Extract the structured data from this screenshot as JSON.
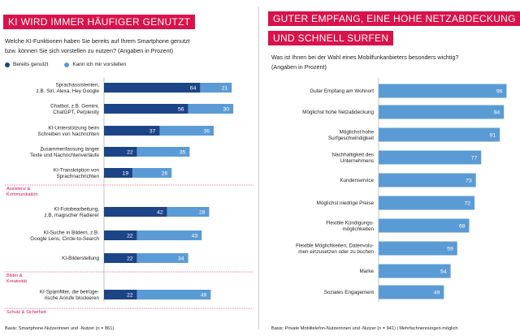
{
  "left": {
    "title": "KI WIRD IMMER HÄUFIGER GENUTZT",
    "question_line1": "Welche KI-Funktionen haben Sie bereits auf Ihrem Smartphone genutzt",
    "question_line2": "bzw. können Sie sich vorstellen zu nutzen? (Angaben in Prozent)",
    "basis": "Basis: Smartphone-Nutzerinnen und -Nutzer (n = 861)"
  },
  "right": {
    "title_line1": "GUTER EMPFANG, EINE HOHE NETZABDECKUNG",
    "title_line2": "UND SCHNELL SURFEN",
    "question_line1": "Was ist Ihnen bei der Wahl eines Mobilfunkanbieters besonders wichtig?",
    "question_line2": "(Angaben in Prozent)",
    "basis": "Basis: Private Mobiltelefon-Nutzerinnen und -Nutzer (n = 941) | Mehrfachnennungen möglich"
  },
  "colors": {
    "accent": "#d9124c",
    "dark_blue": "#1c4587",
    "light_blue": "#5b9bd5",
    "text": "#1d1d1b"
  },
  "chart_data": [
    {
      "type": "bar",
      "orientation": "horizontal",
      "stacked": true,
      "legend": [
        "Bereits genutzt",
        "Kann ich mir vorstellen"
      ],
      "categories": [
        [
          "Sprachassistenten,",
          "z.B. Siri, Alexa, Hey Google"
        ],
        [
          "Chatbot, z.B. Gemini,",
          "ChatGPT, Perplexity"
        ],
        [
          "KI-Unterstützung beim",
          "Schreiben von Nachrichten"
        ],
        [
          "Zusammenfassung langer",
          "Texte und Nachrichtenverläufe"
        ],
        [
          "KI-Transkription von",
          "Sprachnachrichten"
        ],
        [
          "KI-Fotobearbeitung,",
          "z.B. magischer Radierer"
        ],
        [
          "KI-Suche in Bildern, z.B.",
          "Google Lens, Circle-to-Search"
        ],
        [
          "KI-Bilderstellung"
        ],
        [
          "KI-Spamfilter, die betrüge-",
          "rische Anrufe blockieren"
        ]
      ],
      "series": [
        {
          "name": "Bereits genutzt",
          "values": [
            64,
            56,
            37,
            22,
            19,
            42,
            22,
            22,
            22
          ]
        },
        {
          "name": "Kann ich mir vorstellen",
          "values": [
            21,
            30,
            36,
            35,
            26,
            28,
            43,
            34,
            49
          ]
        }
      ],
      "groups": [
        {
          "label": [
            "Assistenz &",
            "Kommunikation"
          ],
          "end_index": 4
        },
        {
          "label": [
            "Bilder &",
            "Kreativität"
          ],
          "end_index": 7
        },
        {
          "label": [
            "Schutz & Sicherheit"
          ],
          "end_index": 8
        }
      ],
      "xlim": [
        0,
        100
      ]
    },
    {
      "type": "bar",
      "orientation": "horizontal",
      "categories": [
        [
          "Guter Empfang am Wohnort"
        ],
        [
          "Möglichst hohe Netzabdeckung"
        ],
        [
          "Möglichst hohe",
          "Surfgeschwindigkeit"
        ],
        [
          "Nachhaltigkeit des",
          "Unternehmens"
        ],
        [
          "Kundenservice"
        ],
        [
          "Möglichst niedrige Preise"
        ],
        [
          "Flexible Kündigungs-",
          "möglichkeiten"
        ],
        [
          "Flexible Möglichkeiten, Datenvolu-",
          "men einzusetzen oder zu buchen"
        ],
        [
          "Marke"
        ],
        [
          "Soziales Engagement"
        ]
      ],
      "values": [
        96,
        94,
        91,
        77,
        73,
        72,
        68,
        59,
        54,
        49
      ],
      "xlim": [
        0,
        100
      ]
    }
  ]
}
